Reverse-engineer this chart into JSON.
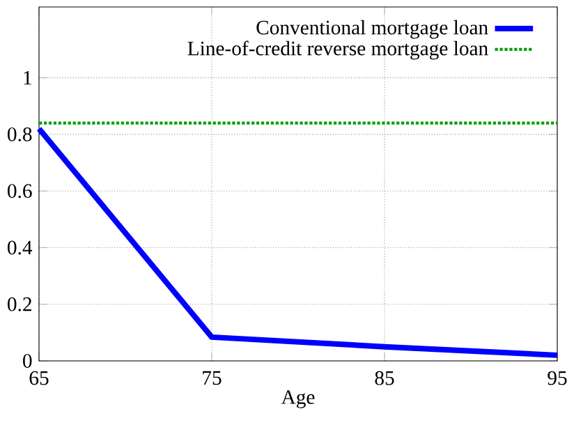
{
  "chart_data": {
    "type": "line",
    "xlabel": "Age",
    "xlim": [
      65,
      95
    ],
    "xticks": [
      65,
      75,
      85,
      95
    ],
    "ylim": [
      0,
      1.25
    ],
    "yticks": [
      0,
      0.2,
      0.4,
      0.6,
      0.8,
      1
    ],
    "grid": true,
    "legend": "top right",
    "series": [
      {
        "name": "Conventional mortgage loan",
        "color": "#0000ff",
        "line_style": "solid",
        "x": [
          65,
          75,
          85,
          95
        ],
        "values": [
          0.82,
          0.084,
          0.05,
          0.02
        ]
      },
      {
        "name": "Line-of-credit reverse mortgage loan",
        "color": "#00a000",
        "line_style": "dotted",
        "x": [
          65,
          95
        ],
        "values": [
          0.84,
          0.84
        ]
      }
    ]
  }
}
